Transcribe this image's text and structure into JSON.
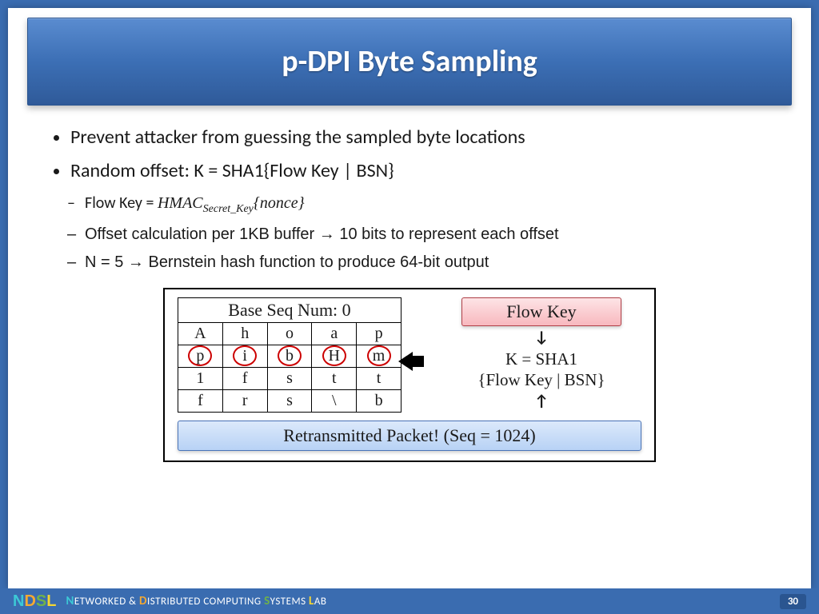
{
  "title": "p-DPI Byte Sampling",
  "bullets": {
    "b1": "Prevent attacker from guessing the sampled byte locations",
    "b2": "Random offset: K = SHA1{Flow Key | BSN}",
    "s1_pre": "Flow Key = ",
    "s1_hmac": "HMAC",
    "s1_sub": "Secret_Key",
    "s1_nonce": "{nonce}",
    "s2": "Offset calculation per 1KB buffer → 10 bits to represent each offset",
    "s3": "N = 5 → Bernstein hash function to produce 64-bit output"
  },
  "diagram": {
    "grid_title": "Base Seq Num: 0",
    "rows": [
      [
        "A",
        "h",
        "o",
        "a",
        "p"
      ],
      [
        "p",
        "i",
        "b",
        "H",
        "m"
      ],
      [
        "1",
        "f",
        "s",
        "t",
        "t"
      ],
      [
        "f",
        "r",
        "s",
        "\\",
        "b"
      ]
    ],
    "circled_row": 1,
    "flowkey": "Flow Key",
    "k_line1": "K = SHA1",
    "k_line2": "{Flow Key | BSN}",
    "retrans": "Retransmitted Packet! (Seq = 1024)"
  },
  "footer": {
    "lab": {
      "n": "N",
      "net": "ETWORKED & ",
      "d": "D",
      "dist": "ISTRIBUTED COMPUTING ",
      "s": "S",
      "sys": "YSTEMS ",
      "l": "L",
      "lab": "AB"
    },
    "page": "30"
  }
}
